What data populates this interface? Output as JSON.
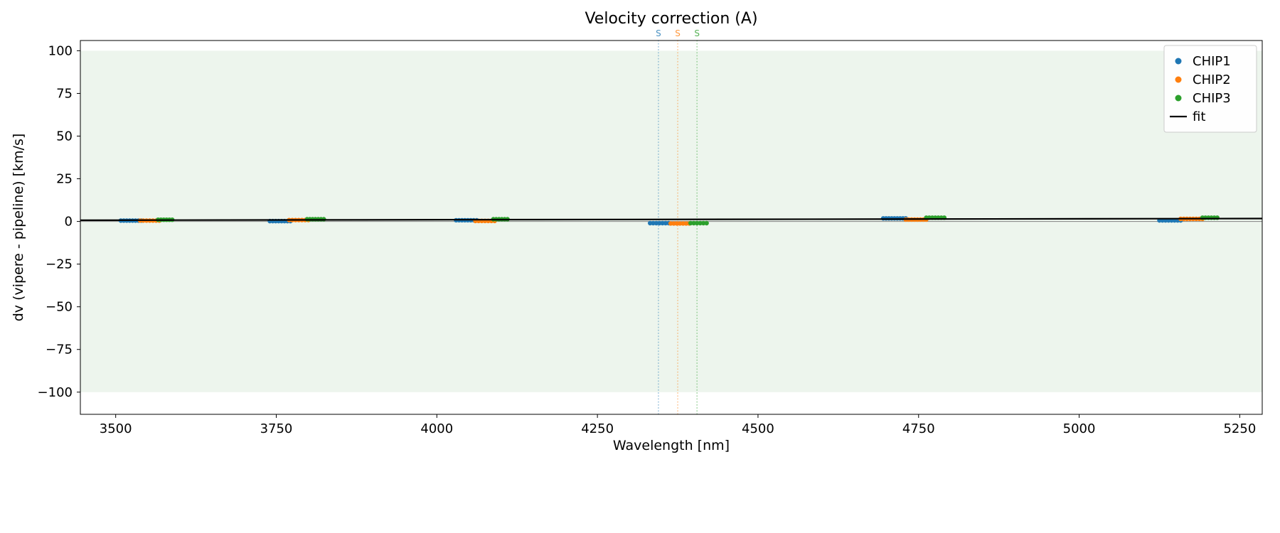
{
  "chart_data": {
    "type": "scatter",
    "title": "Velocity correction (A)",
    "xlabel": "Wavelength [nm]",
    "ylabel": "dv (vipere - pipeline) [km/s]",
    "xlim": [
      3445,
      5285
    ],
    "ylim": [
      -113,
      106
    ],
    "xticks": [
      3500,
      3750,
      4000,
      4250,
      4500,
      4750,
      5000,
      5250
    ],
    "yticks": [
      -100,
      -75,
      -50,
      -25,
      0,
      25,
      50,
      75,
      100
    ],
    "grid": false,
    "background_band": {
      "ymin": -100,
      "ymax": 100,
      "color": "#edf5ed"
    },
    "zero_line": {
      "y": 0,
      "color": "#808080"
    },
    "series": [
      {
        "name": "CHIP1",
        "color": "#1f77b4",
        "segments": [
          {
            "x0": 3508,
            "x1": 3540,
            "y": 0.5
          },
          {
            "x0": 3740,
            "x1": 3772,
            "y": 0.2
          },
          {
            "x0": 4030,
            "x1": 4062,
            "y": 0.7
          },
          {
            "x0": 4332,
            "x1": 4361,
            "y": -1.0
          },
          {
            "x0": 4695,
            "x1": 4730,
            "y": 1.8
          },
          {
            "x0": 5125,
            "x1": 5158,
            "y": 0.6
          }
        ]
      },
      {
        "name": "CHIP2",
        "color": "#ff7f0e",
        "segments": [
          {
            "x0": 3538,
            "x1": 3568,
            "y": 0.5
          },
          {
            "x0": 3770,
            "x1": 3800,
            "y": 0.8
          },
          {
            "x0": 4060,
            "x1": 4090,
            "y": 0.3
          },
          {
            "x0": 4364,
            "x1": 4393,
            "y": -1.2
          },
          {
            "x0": 4730,
            "x1": 4762,
            "y": 1.1
          },
          {
            "x0": 5158,
            "x1": 5192,
            "y": 1.5
          }
        ]
      },
      {
        "name": "CHIP3",
        "color": "#2ca02c",
        "segments": [
          {
            "x0": 3566,
            "x1": 3588,
            "y": 1.0
          },
          {
            "x0": 3798,
            "x1": 3824,
            "y": 1.3
          },
          {
            "x0": 4088,
            "x1": 4110,
            "y": 1.3
          },
          {
            "x0": 4395,
            "x1": 4420,
            "y": -1.0
          },
          {
            "x0": 4762,
            "x1": 4790,
            "y": 2.2
          },
          {
            "x0": 5192,
            "x1": 5215,
            "y": 2.2
          }
        ]
      }
    ],
    "fit_line": {
      "name": "fit",
      "color": "#000000",
      "x0": 3445,
      "y0": 0.7,
      "x1": 5285,
      "y1": 1.7
    },
    "vlines": [
      {
        "x": 4345,
        "color": "#1f77b4",
        "label": "S"
      },
      {
        "x": 4375,
        "color": "#ff7f0e",
        "label": "S"
      },
      {
        "x": 4405,
        "color": "#2ca02c",
        "label": "S"
      }
    ],
    "legend": {
      "position": "upper right",
      "entries": [
        {
          "label": "CHIP1",
          "marker": "dot",
          "color": "#1f77b4"
        },
        {
          "label": "CHIP2",
          "marker": "dot",
          "color": "#ff7f0e"
        },
        {
          "label": "CHIP3",
          "marker": "dot",
          "color": "#2ca02c"
        },
        {
          "label": "fit",
          "marker": "line",
          "color": "#000000"
        }
      ]
    }
  }
}
